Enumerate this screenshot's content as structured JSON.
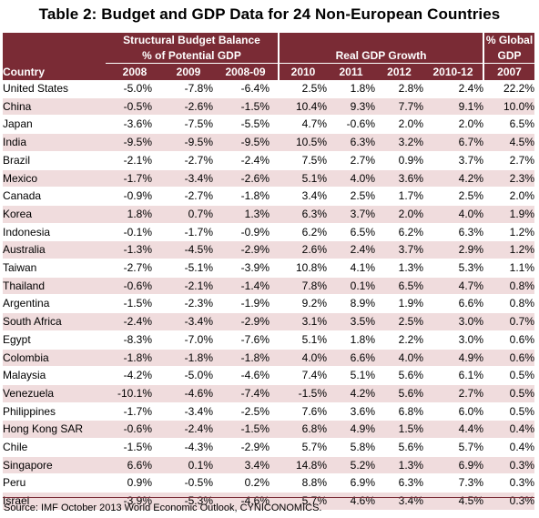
{
  "title": "Table 2:  Budget and GDP Data for 24 Non-European Countries",
  "headers": {
    "group_budget_line1": "Structural Budget Balance",
    "group_budget_line2": "% of Potential GDP",
    "group_gdp": "Real GDP Growth",
    "group_global_line1": "% Global",
    "group_global_line2": "GDP",
    "country": "Country",
    "cols": [
      "2008",
      "2009",
      "2008-09",
      "2010",
      "2011",
      "2012",
      "2010-12",
      "2007"
    ]
  },
  "rows": [
    {
      "country": "United States",
      "v": [
        "-5.0%",
        "-7.8%",
        "-6.4%",
        "2.5%",
        "1.8%",
        "2.8%",
        "2.4%",
        "22.2%"
      ]
    },
    {
      "country": "China",
      "v": [
        "-0.5%",
        "-2.6%",
        "-1.5%",
        "10.4%",
        "9.3%",
        "7.7%",
        "9.1%",
        "10.0%"
      ]
    },
    {
      "country": "Japan",
      "v": [
        "-3.6%",
        "-7.5%",
        "-5.5%",
        "4.7%",
        "-0.6%",
        "2.0%",
        "2.0%",
        "6.5%"
      ]
    },
    {
      "country": "India",
      "v": [
        "-9.5%",
        "-9.5%",
        "-9.5%",
        "10.5%",
        "6.3%",
        "3.2%",
        "6.7%",
        "4.5%"
      ]
    },
    {
      "country": "Brazil",
      "v": [
        "-2.1%",
        "-2.7%",
        "-2.4%",
        "7.5%",
        "2.7%",
        "0.9%",
        "3.7%",
        "2.7%"
      ]
    },
    {
      "country": "Mexico",
      "v": [
        "-1.7%",
        "-3.4%",
        "-2.6%",
        "5.1%",
        "4.0%",
        "3.6%",
        "4.2%",
        "2.3%"
      ]
    },
    {
      "country": "Canada",
      "v": [
        "-0.9%",
        "-2.7%",
        "-1.8%",
        "3.4%",
        "2.5%",
        "1.7%",
        "2.5%",
        "2.0%"
      ]
    },
    {
      "country": "Korea",
      "v": [
        "1.8%",
        "0.7%",
        "1.3%",
        "6.3%",
        "3.7%",
        "2.0%",
        "4.0%",
        "1.9%"
      ]
    },
    {
      "country": "Indonesia",
      "v": [
        "-0.1%",
        "-1.7%",
        "-0.9%",
        "6.2%",
        "6.5%",
        "6.2%",
        "6.3%",
        "1.2%"
      ]
    },
    {
      "country": "Australia",
      "v": [
        "-1.3%",
        "-4.5%",
        "-2.9%",
        "2.6%",
        "2.4%",
        "3.7%",
        "2.9%",
        "1.2%"
      ]
    },
    {
      "country": "Taiwan",
      "v": [
        "-2.7%",
        "-5.1%",
        "-3.9%",
        "10.8%",
        "4.1%",
        "1.3%",
        "5.3%",
        "1.1%"
      ]
    },
    {
      "country": "Thailand",
      "v": [
        "-0.6%",
        "-2.1%",
        "-1.4%",
        "7.8%",
        "0.1%",
        "6.5%",
        "4.7%",
        "0.8%"
      ]
    },
    {
      "country": "Argentina",
      "v": [
        "-1.5%",
        "-2.3%",
        "-1.9%",
        "9.2%",
        "8.9%",
        "1.9%",
        "6.6%",
        "0.8%"
      ]
    },
    {
      "country": "South Africa",
      "v": [
        "-2.4%",
        "-3.4%",
        "-2.9%",
        "3.1%",
        "3.5%",
        "2.5%",
        "3.0%",
        "0.7%"
      ]
    },
    {
      "country": "Egypt",
      "v": [
        "-8.3%",
        "-7.0%",
        "-7.6%",
        "5.1%",
        "1.8%",
        "2.2%",
        "3.0%",
        "0.6%"
      ]
    },
    {
      "country": "Colombia",
      "v": [
        "-1.8%",
        "-1.8%",
        "-1.8%",
        "4.0%",
        "6.6%",
        "4.0%",
        "4.9%",
        "0.6%"
      ]
    },
    {
      "country": "Malaysia",
      "v": [
        "-4.2%",
        "-5.0%",
        "-4.6%",
        "7.4%",
        "5.1%",
        "5.6%",
        "6.1%",
        "0.5%"
      ]
    },
    {
      "country": "Venezuela",
      "v": [
        "-10.1%",
        "-4.6%",
        "-7.4%",
        "-1.5%",
        "4.2%",
        "5.6%",
        "2.7%",
        "0.5%"
      ]
    },
    {
      "country": "Philippines",
      "v": [
        "-1.7%",
        "-3.4%",
        "-2.5%",
        "7.6%",
        "3.6%",
        "6.8%",
        "6.0%",
        "0.5%"
      ]
    },
    {
      "country": "Hong Kong SAR",
      "v": [
        "-0.6%",
        "-2.4%",
        "-1.5%",
        "6.8%",
        "4.9%",
        "1.5%",
        "4.4%",
        "0.4%"
      ]
    },
    {
      "country": "Chile",
      "v": [
        "-1.5%",
        "-4.3%",
        "-2.9%",
        "5.7%",
        "5.8%",
        "5.6%",
        "5.7%",
        "0.4%"
      ]
    },
    {
      "country": "Singapore",
      "v": [
        "6.6%",
        "0.1%",
        "3.4%",
        "14.8%",
        "5.2%",
        "1.3%",
        "6.9%",
        "0.3%"
      ]
    },
    {
      "country": "Peru",
      "v": [
        "0.9%",
        "-0.5%",
        "0.2%",
        "8.8%",
        "6.9%",
        "6.3%",
        "7.3%",
        "0.3%"
      ]
    },
    {
      "country": "Israel",
      "v": [
        "-3.9%",
        "-5.3%",
        "-4.6%",
        "5.7%",
        "4.6%",
        "3.4%",
        "4.5%",
        "0.3%"
      ]
    }
  ],
  "source": "Source:  IMF October 2013 World Economic Outlook, CYNICONOMICS.",
  "colors": {
    "header_bg": "#7a2b35",
    "alt_row_bg": "#f0dcdd"
  }
}
